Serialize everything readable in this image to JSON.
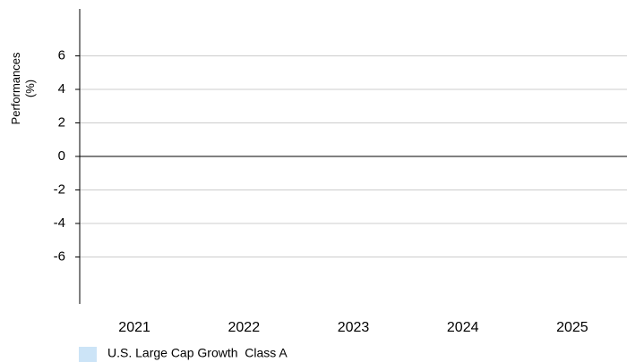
{
  "chart_data": {
    "type": "bar",
    "categories": [
      "2021",
      "2022",
      "2023",
      "2024",
      "2025"
    ],
    "series": [
      {
        "name": "U.S. Large Cap Growth  Class A",
        "values": [
          null,
          null,
          null,
          null,
          null
        ],
        "color": "#cce4f7"
      }
    ],
    "ylabel_lines": [
      "Performances",
      "(%)"
    ],
    "yticks": [
      6,
      4,
      2,
      0,
      -2,
      -4,
      -6
    ],
    "ytick_labels": [
      "6",
      "4",
      "2",
      "0",
      "-2",
      "-4",
      "-6"
    ],
    "ylim": [
      -8.5,
      8.5
    ],
    "grid": true,
    "legend_position": "bottom-left",
    "colors": {
      "gridline": "#cccccc",
      "axis": "#000000",
      "zero_line": "#000000"
    }
  }
}
